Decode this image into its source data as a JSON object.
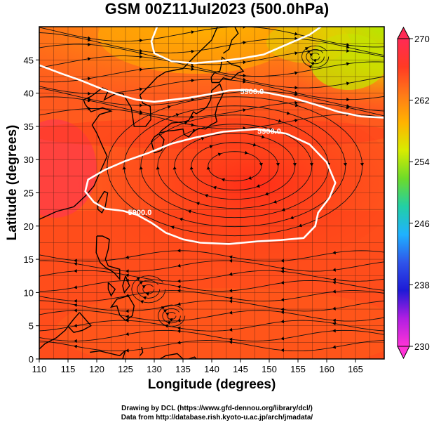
{
  "title": "GSM 00Z11Jul2023 (500.0hPa)",
  "chart_data": {
    "type": "map",
    "xlabel": "Longitude (degrees)",
    "ylabel": "Latitude  (degrees)",
    "xlim": [
      110,
      170
    ],
    "ylim": [
      0,
      50
    ],
    "xticks": [
      110,
      115,
      120,
      125,
      130,
      135,
      140,
      145,
      150,
      155,
      160,
      165
    ],
    "yticks": [
      0,
      5,
      10,
      15,
      20,
      25,
      30,
      35,
      40,
      45
    ],
    "shading_variable_range": [
      230,
      270
    ],
    "colorbar_ticks": [
      270,
      262,
      254,
      246,
      238,
      230
    ],
    "contour_label": "5900.0",
    "contours": [
      {
        "name": "northern",
        "points": [
          [
            110,
            44.2
          ],
          [
            114,
            42.9
          ],
          [
            117,
            42
          ],
          [
            121,
            40.6
          ],
          [
            124,
            39.7
          ],
          [
            127,
            39
          ],
          [
            130,
            38.7
          ],
          [
            133,
            39
          ],
          [
            136,
            39.3
          ],
          [
            140,
            39.9
          ],
          [
            143,
            40.4
          ],
          [
            146,
            40.5
          ],
          [
            150,
            40
          ],
          [
            154,
            39.3
          ],
          [
            158,
            38.3
          ],
          [
            162,
            37.2
          ],
          [
            166,
            36.5
          ],
          [
            170,
            36.3
          ]
        ],
        "labels": [
          [
            147,
            40.3
          ]
        ]
      },
      {
        "name": "high-cell",
        "points": [
          [
            129,
            31
          ],
          [
            133,
            32.4
          ],
          [
            137,
            33.3
          ],
          [
            142,
            34.2
          ],
          [
            148,
            34.6
          ],
          [
            153,
            33.9
          ],
          [
            157,
            32.3
          ],
          [
            160,
            29.6
          ],
          [
            161.5,
            26.5
          ],
          [
            160.5,
            24.3
          ],
          [
            158.5,
            22
          ],
          [
            158,
            20
          ],
          [
            156,
            18.2
          ],
          [
            152,
            17.9
          ],
          [
            148,
            17.7
          ],
          [
            143,
            17.3
          ],
          [
            138,
            17.5
          ],
          [
            135,
            18
          ],
          [
            132,
            19
          ],
          [
            129.5,
            20.5
          ],
          [
            127,
            21.7
          ],
          [
            124.5,
            22.3
          ],
          [
            121.5,
            22.6
          ],
          [
            119.5,
            23.6
          ],
          [
            118,
            25.2
          ],
          [
            118.5,
            27
          ],
          [
            121.5,
            28.5
          ],
          [
            125,
            29.8
          ],
          [
            129,
            31
          ]
        ],
        "labels": [
          [
            150,
            34.3
          ],
          [
            127.5,
            22.1
          ]
        ]
      },
      {
        "name": "north-top",
        "points": [
          [
            130.5,
            50
          ],
          [
            129.5,
            47.8
          ],
          [
            130,
            46
          ],
          [
            133,
            44.8
          ],
          [
            137,
            44.5
          ],
          [
            141,
            44.8
          ],
          [
            145,
            45.2
          ],
          [
            149,
            45.8
          ],
          [
            153,
            47.3
          ],
          [
            157,
            48.8
          ],
          [
            159,
            50
          ]
        ]
      }
    ]
  },
  "colorbar": {
    "stops": [
      "#ff2a55",
      "#ff3a24",
      "#ff7a18",
      "#ffb300",
      "#d7ec00",
      "#6ddb2a",
      "#22cfa5",
      "#1fb2ff",
      "#2f55ea",
      "#1e1ad6",
      "#b01ee3",
      "#ff33d7"
    ],
    "labels": [
      "270",
      "262",
      "254",
      "246",
      "238",
      "230"
    ]
  },
  "credits": {
    "line1": "Drawing by DCL (https://www.gfd-dennou.org/library/dcl/)",
    "line2": "Data from http://database.rish.kyoto-u.ac.jp/arch/jmadata/"
  }
}
